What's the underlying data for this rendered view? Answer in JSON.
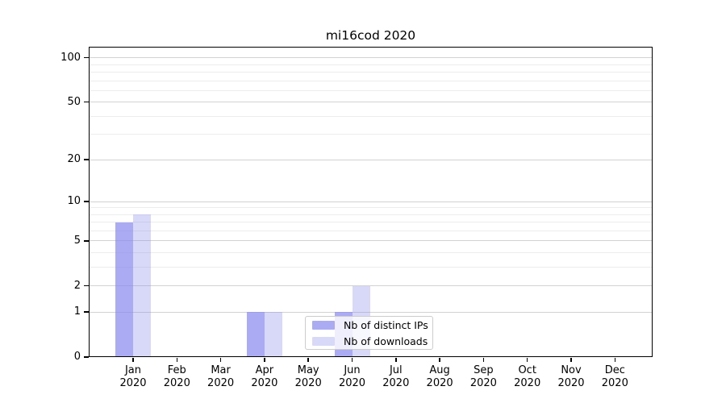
{
  "chart_data": {
    "type": "bar",
    "title": "mi16cod 2020",
    "categories": [
      "Jan",
      "Feb",
      "Mar",
      "Apr",
      "May",
      "Jun",
      "Jul",
      "Aug",
      "Sep",
      "Oct",
      "Nov",
      "Dec"
    ],
    "category_year": "2020",
    "series": [
      {
        "name": "Nb of distinct IPs",
        "color": "rgba(136,136,238,0.70)",
        "values": [
          7,
          0,
          0,
          1,
          0,
          1,
          0,
          0,
          0,
          0,
          0,
          0
        ]
      },
      {
        "name": "Nb of downloads",
        "color": "rgba(136,136,238,0.33)",
        "values": [
          8,
          0,
          0,
          1,
          0,
          2,
          0,
          0,
          0,
          0,
          0,
          0
        ]
      }
    ],
    "xlabel": "",
    "ylabel": "",
    "yscale": "log(1+v)",
    "yticks": [
      0,
      1,
      2,
      5,
      10,
      20,
      50,
      100
    ],
    "minor_gridline_values": [
      3,
      4,
      6,
      7,
      8,
      9,
      30,
      40,
      60,
      70,
      80,
      90
    ],
    "ylim": [
      0,
      116
    ],
    "grid": true,
    "legend_position": "lower center, inside plot",
    "base_bar_color": "#8888ee"
  }
}
